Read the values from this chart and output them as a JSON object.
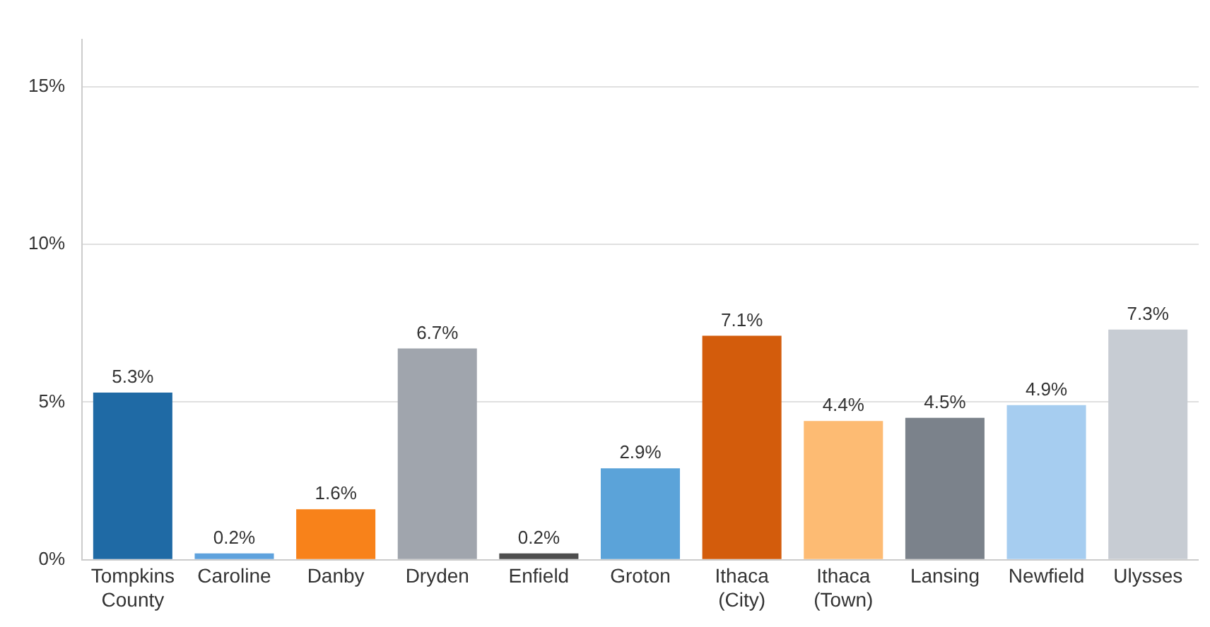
{
  "chart_data": {
    "type": "bar",
    "categories": [
      "Tompkins County",
      "Caroline",
      "Danby",
      "Dryden",
      "Enfield",
      "Groton",
      "Ithaca (City)",
      "Ithaca (Town)",
      "Lansing",
      "Newfield",
      "Ulysses"
    ],
    "values": [
      5.3,
      0.2,
      1.6,
      6.7,
      0.2,
      2.9,
      7.1,
      4.4,
      4.5,
      4.9,
      7.3
    ],
    "colors": [
      "#1f6aa5",
      "#5fa2dd",
      "#f8821a",
      "#a0a5ad",
      "#4e4e4e",
      "#5ba3d9",
      "#d35c0c",
      "#fdbb73",
      "#7b828b",
      "#a6cdf0",
      "#c7ccd3"
    ],
    "value_labels": [
      "5.3%",
      "0.2%",
      "1.6%",
      "6.7%",
      "0.2%",
      "2.9%",
      "7.1%",
      "4.4%",
      "4.5%",
      "4.9%",
      "7.3%"
    ],
    "ylim": [
      0,
      16.5
    ],
    "yticks": [
      {
        "value": 0,
        "label": "0%"
      },
      {
        "value": 5,
        "label": "5%"
      },
      {
        "value": 10,
        "label": "10%"
      },
      {
        "value": 15,
        "label": "15%"
      }
    ],
    "grid": "y",
    "legend": false
  }
}
